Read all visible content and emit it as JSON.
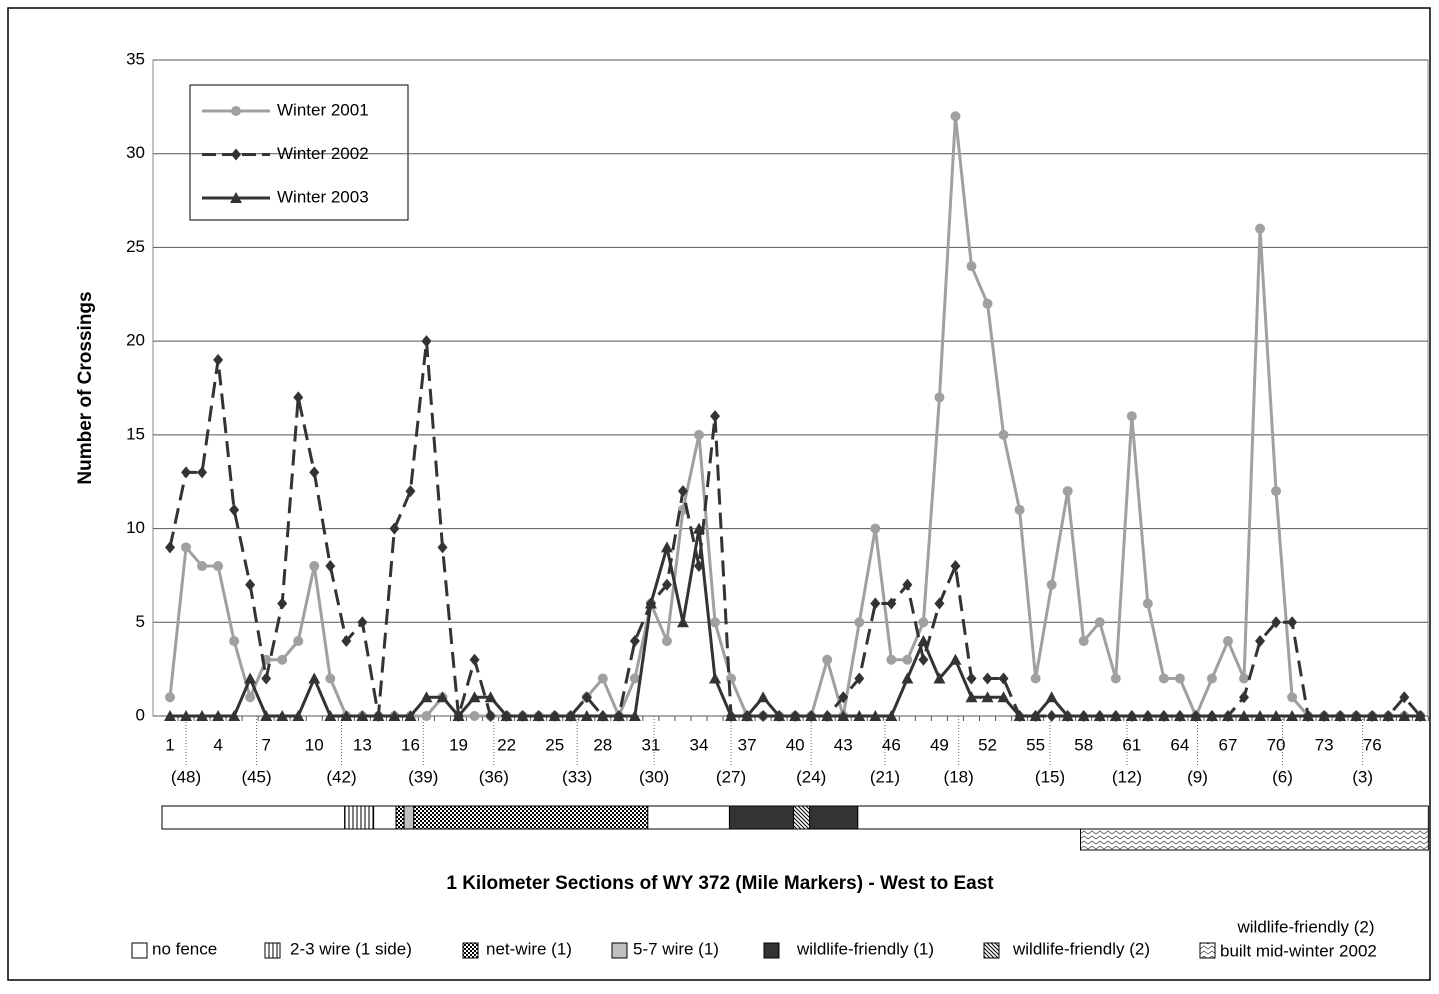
{
  "chart_data": {
    "type": "line",
    "y_label": "Number of Crossings",
    "x_label": "1 Kilometer Sections of WY 372 (Mile Markers) - West to East",
    "categories": [
      "1",
      null,
      null,
      "4",
      null,
      null,
      "7",
      null,
      null,
      "10",
      null,
      null,
      "13",
      null,
      null,
      "16",
      null,
      null,
      "19",
      null,
      null,
      "22",
      null,
      null,
      "25",
      null,
      null,
      "28",
      null,
      null,
      "31",
      null,
      null,
      "34",
      null,
      null,
      "37",
      null,
      null,
      "40",
      null,
      null,
      "43",
      null,
      null,
      "46",
      null,
      null,
      "49",
      null,
      null,
      "52",
      null,
      null,
      "55",
      null,
      null,
      "58",
      null,
      null,
      "61",
      null,
      null,
      "64",
      null,
      null,
      "67",
      null,
      null,
      "70",
      null,
      null,
      "73",
      null,
      null,
      "76",
      null,
      null,
      null
    ],
    "ylim": [
      0,
      35
    ],
    "yticks": [
      0,
      5,
      10,
      15,
      20,
      25,
      30,
      35
    ],
    "grid": true,
    "series": [
      {
        "name": "Winter 2001",
        "color": "#a0a0a0",
        "marker": "circle",
        "dashed": false,
        "values": [
          1,
          9,
          8,
          8,
          4,
          1,
          3,
          3,
          4,
          8,
          2,
          0,
          0,
          0,
          0,
          0,
          0,
          1,
          0,
          0,
          0,
          0,
          0,
          0,
          0,
          0,
          1,
          2,
          0,
          2,
          6,
          4,
          11,
          15,
          5,
          2,
          0,
          0,
          0,
          0,
          0,
          3,
          0,
          5,
          10,
          3,
          3,
          5,
          17,
          32,
          24,
          22,
          15,
          11,
          2,
          7,
          12,
          4,
          5,
          2,
          16,
          6,
          2,
          2,
          0,
          2,
          4,
          2,
          26,
          12,
          1,
          0,
          0,
          0,
          0,
          0,
          0,
          0,
          0
        ]
      },
      {
        "name": "Winter 2002",
        "color": "#333333",
        "marker": "diamond",
        "dashed": true,
        "values": [
          9,
          13,
          13,
          19,
          11,
          7,
          2,
          6,
          17,
          13,
          8,
          4,
          5,
          0,
          10,
          12,
          20,
          9,
          0,
          3,
          0,
          0,
          0,
          0,
          0,
          0,
          1,
          0,
          0,
          4,
          6,
          7,
          12,
          8,
          16,
          0,
          0,
          0,
          0,
          0,
          0,
          0,
          1,
          2,
          6,
          6,
          7,
          3,
          6,
          8,
          2,
          2,
          2,
          0,
          0,
          0,
          0,
          0,
          0,
          0,
          0,
          0,
          0,
          0,
          0,
          0,
          0,
          1,
          4,
          5,
          5,
          0,
          0,
          0,
          0,
          0,
          0,
          1,
          0
        ]
      },
      {
        "name": "Winter 2003",
        "color": "#333333",
        "marker": "triangle",
        "dashed": false,
        "values": [
          0,
          0,
          0,
          0,
          0,
          2,
          0,
          0,
          0,
          2,
          0,
          0,
          0,
          0,
          0,
          0,
          1,
          1,
          0,
          1,
          1,
          0,
          0,
          0,
          0,
          0,
          0,
          0,
          0,
          0,
          6,
          9,
          5,
          10,
          2,
          0,
          0,
          1,
          0,
          0,
          0,
          0,
          0,
          0,
          0,
          0,
          2,
          4,
          2,
          3,
          1,
          1,
          1,
          0,
          0,
          1,
          0,
          0,
          0,
          0,
          0,
          0,
          0,
          0,
          0,
          0,
          0,
          0,
          0,
          0,
          0,
          0,
          0,
          0,
          0,
          0,
          0,
          0,
          0
        ]
      }
    ],
    "mile_markers": [
      {
        "x": 2.0,
        "label": "(48)"
      },
      {
        "x": 6.4,
        "label": "(45)"
      },
      {
        "x": 11.7,
        "label": "(42)"
      },
      {
        "x": 16.8,
        "label": "(39)"
      },
      {
        "x": 21.2,
        "label": "(36)"
      },
      {
        "x": 26.4,
        "label": "(33)"
      },
      {
        "x": 31.2,
        "label": "(30)"
      },
      {
        "x": 36.0,
        "label": "(27)"
      },
      {
        "x": 41.0,
        "label": "(24)"
      },
      {
        "x": 45.6,
        "label": "(21)"
      },
      {
        "x": 50.2,
        "label": "(18)"
      },
      {
        "x": 55.9,
        "label": "(15)"
      },
      {
        "x": 60.7,
        "label": "(12)"
      },
      {
        "x": 65.1,
        "label": "(9)"
      },
      {
        "x": 70.4,
        "label": "(6)"
      },
      {
        "x": 75.4,
        "label": "(3)"
      }
    ],
    "fence_types": [
      {
        "label": "no fence",
        "segments": [
          [
            0.5,
            11.9
          ],
          [
            13.7,
            15.1
          ],
          [
            30.8,
            35.9
          ],
          [
            43.9,
            79.5
          ]
        ]
      },
      {
        "label": "2-3 wire (1 side)",
        "segments": [
          [
            11.9,
            13.7
          ]
        ]
      },
      {
        "label": "net-wire (1)",
        "segments": [
          [
            15.1,
            15.6
          ],
          [
            16.2,
            30.8
          ]
        ]
      },
      {
        "label": "5-7 wire (1)",
        "segments": [
          [
            15.6,
            16.2
          ]
        ]
      },
      {
        "label": "wildlife-friendly (1)",
        "segments": [
          [
            35.9,
            39.9
          ],
          [
            40.9,
            43.9
          ]
        ]
      },
      {
        "label": "wildlife-friendly (2)",
        "segments": [
          [
            39.9,
            40.9
          ]
        ]
      },
      {
        "label": [
          "wildlife-friendly (2)",
          "built mid-winter 2002"
        ],
        "segments": [
          [
            57.8,
            79.5
          ]
        ]
      }
    ]
  }
}
